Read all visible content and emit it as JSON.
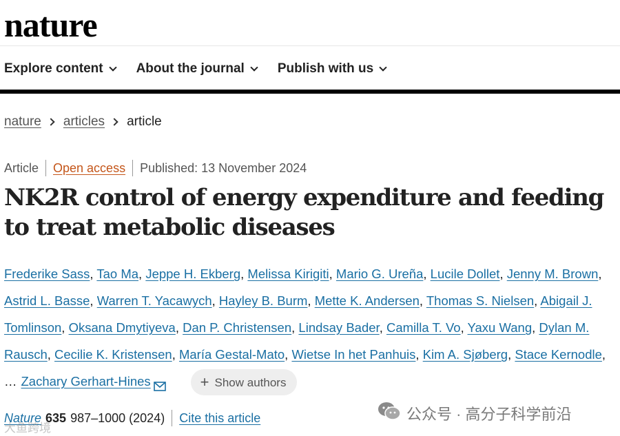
{
  "header": {
    "logo": "nature",
    "nav": [
      {
        "label": "Explore content"
      },
      {
        "label": "About the journal"
      },
      {
        "label": "Publish with us"
      }
    ]
  },
  "breadcrumb": [
    {
      "label": "nature"
    },
    {
      "label": "articles"
    },
    {
      "label": "article"
    }
  ],
  "article": {
    "type": "Article",
    "access": "Open access",
    "published": "Published: 13 November 2024",
    "title": "NK2R control of energy expenditure and feeding to treat metabolic diseases",
    "authors": [
      "Frederike Sass",
      "Tao Ma",
      "Jeppe H. Ekberg",
      "Melissa Kirigiti",
      "Mario G. Ureña",
      "Lucile Dollet",
      "Jenny M. Brown",
      "Astrid L. Basse",
      "Warren T. Yacawych",
      "Hayley B. Burm",
      "Mette K. Andersen",
      "Thomas S. Nielsen",
      "Abigail J. Tomlinson",
      "Oksana Dmytiyeva",
      "Dan P. Christensen",
      "Lindsay Bader",
      "Camilla T. Vo",
      "Yaxu Wang",
      "Dylan M. Rausch",
      "Cecilie K. Kristensen",
      "María Gestal-Mato",
      "Wietse In het Panhuis",
      "Kim A. Sjøberg",
      "Stace Kernodle"
    ],
    "ellipsis": "…",
    "last_author": "Zachary Gerhart-Hines",
    "show_authors": "Show authors",
    "citation": {
      "journal": "Nature",
      "volume": "635",
      "pages": "987–1000 (2024)",
      "cite_label": "Cite this article"
    }
  },
  "watermark": {
    "text": "公众号 · 高分子科学前沿",
    "bottom": "大鱼跨境"
  },
  "icons": {
    "mail": "envelope-icon",
    "plus": "plus-icon",
    "chevron": "chevron-down-icon",
    "wechat": "wechat-icon"
  },
  "colors": {
    "link": "#1a6fa3",
    "open_access": "#c4561a",
    "navbar_rule": "#000000"
  }
}
